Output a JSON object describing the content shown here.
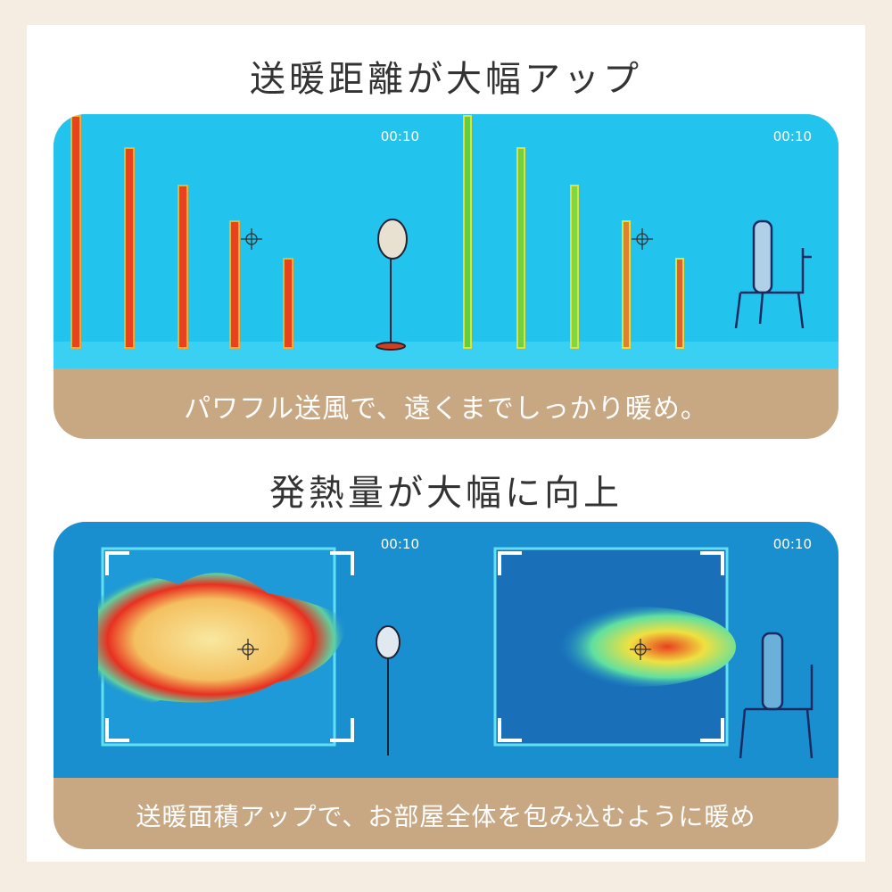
{
  "section1": {
    "title": "送暖距離が大幅アップ",
    "caption": "パワフル送風で、遠くまでしっかり暖め。",
    "left_timestamp": "00:10",
    "right_timestamp": "00:10"
  },
  "section2": {
    "title": "発熱量が大幅に向上",
    "caption": "送暖面積アップで、お部屋全体を包み込むように暖め",
    "left_timestamp": "00:10",
    "right_timestamp": "00:10"
  },
  "colors": {
    "background": "#f5ece2",
    "caption_band": "#c8a883",
    "thermal_cold": "#1ec8f0",
    "thermal_hot": "#e8321e"
  }
}
